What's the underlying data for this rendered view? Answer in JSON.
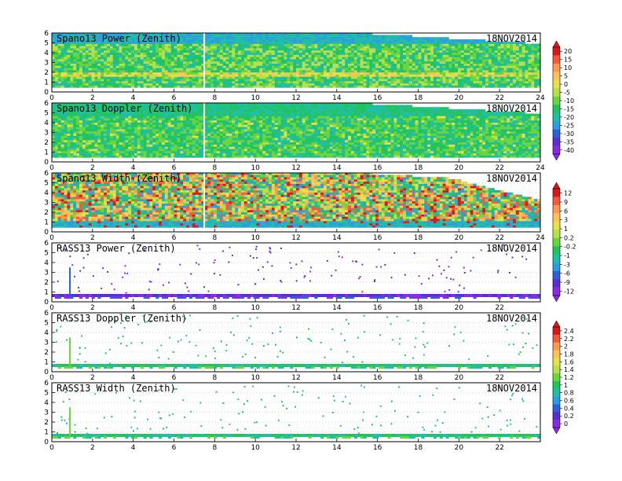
{
  "chart_data": {
    "type": "heatmap",
    "date": "18NOV2014",
    "xlim": [
      0,
      24
    ],
    "ylim": [
      0,
      6
    ],
    "y_ticks": [
      "0",
      "1",
      "2",
      "3",
      "4",
      "5",
      "6"
    ],
    "panels": [
      {
        "title": "Spano13 Power (Zenith)",
        "date": "18NOV2014",
        "x_ticks": [
          "0",
          "2",
          "4",
          "6",
          "8",
          "10",
          "12",
          "14",
          "16",
          "18",
          "20",
          "22",
          "24"
        ]
      },
      {
        "title": "Spano13 Doppler (Zenith)",
        "date": "18NOV2014",
        "x_ticks": [
          "0",
          "2",
          "4",
          "6",
          "8",
          "10",
          "12",
          "14",
          "16",
          "18",
          "20",
          "22",
          "24"
        ]
      },
      {
        "title": "Spano13 Width (Zenith)",
        "date": "18NOV2014",
        "x_ticks": [
          "0",
          "2",
          "4",
          "6",
          "8",
          "10",
          "12",
          "14",
          "16",
          "18",
          "20",
          "22",
          "24"
        ]
      },
      {
        "title": "RASS13 Power (Zenith)",
        "date": "18NOV2014",
        "x_ticks": [
          "0",
          "2",
          "4",
          "6",
          "8",
          "10",
          "12",
          "14",
          "16",
          "18",
          "20",
          "22"
        ]
      },
      {
        "title": "RASS13 Doppler (Zenith)",
        "date": "18NOV2014",
        "x_ticks": [
          "0",
          "2",
          "4",
          "6",
          "8",
          "10",
          "12",
          "14",
          "16",
          "18",
          "20",
          "22"
        ]
      },
      {
        "title": "RASS13 Width (Zenith)",
        "date": "18NOV2014",
        "x_ticks": [
          "0",
          "2",
          "4",
          "6",
          "8",
          "10",
          "12",
          "14",
          "16",
          "18",
          "20",
          "22"
        ]
      }
    ],
    "colorbars": [
      {
        "labels": [
          "20",
          "15",
          "10",
          "5",
          "0",
          "-5",
          "-10",
          "-15",
          "-20",
          "-25",
          "-30",
          "-35",
          "-40"
        ],
        "colors": [
          "#d7191c",
          "#f55a3c",
          "#fb9a50",
          "#fdc35a",
          "#e8e24a",
          "#b8e04a",
          "#6ad63c",
          "#21c45c",
          "#1fbfa6",
          "#2a9fe0",
          "#2b62d8",
          "#5a2fd0",
          "#8a2be2"
        ]
      },
      {
        "labels": [
          "12",
          "9",
          "6",
          "3",
          "1",
          "0.2",
          "-0.2",
          "-1",
          "-3",
          "-6",
          "-9",
          "-12"
        ],
        "colors": [
          "#d7191c",
          "#f55a3c",
          "#fb9a50",
          "#fdc35a",
          "#e8e24a",
          "#b8e04a",
          "#6ad63c",
          "#21c45c",
          "#1fbfa6",
          "#2a9fe0",
          "#2b62d8",
          "#5a2fd0",
          "#8a2be2"
        ]
      },
      {
        "labels": [
          "2.4",
          "2.2",
          "2",
          "1.8",
          "1.6",
          "1.4",
          "1.2",
          "1",
          "0.8",
          "0.6",
          "0.4",
          "0.2",
          "0"
        ],
        "colors": [
          "#d7191c",
          "#f55a3c",
          "#fb9a50",
          "#fdc35a",
          "#e8e24a",
          "#b8e04a",
          "#6ad63c",
          "#21c45c",
          "#1fbfa6",
          "#2a9fe0",
          "#2b62d8",
          "#5a2fd0",
          "#8a2be2"
        ]
      }
    ]
  }
}
